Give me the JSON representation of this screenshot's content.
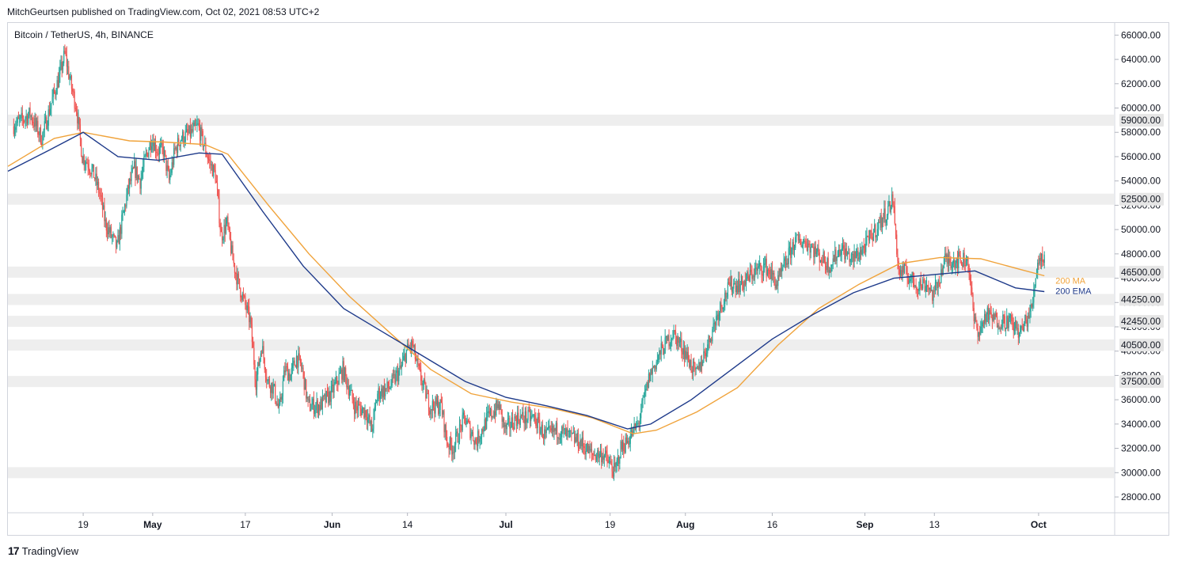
{
  "header": {
    "published": "MitchGeurtsen published on TradingView.com, Oct 02, 2021 08:53 UTC+2"
  },
  "footer": {
    "brand": "TradingView"
  },
  "colors": {
    "up": "#26a69a",
    "down": "#ef5350",
    "ma": "#f0a33b",
    "ema": "#1e3a8a",
    "zone": "#eeeeee",
    "grid": "#f0f3fa"
  },
  "chart_data": {
    "type": "candlestick",
    "title": "Bitcoin / TetherUS, 4h, BINANCE",
    "ylim": [
      26700,
      67000
    ],
    "y_ticks": [
      28000,
      30000,
      32000,
      34000,
      36000,
      38000,
      40000,
      42000,
      44000,
      46000,
      48000,
      50000,
      52000,
      54000,
      56000,
      58000,
      60000,
      62000,
      64000,
      66000
    ],
    "y_tick_labels": [
      "28000.00",
      "30000.00",
      "32000.00",
      "34000.00",
      "36000.00",
      "38000.00",
      "40000.00",
      "42000.00",
      "44000.00",
      "46000.00",
      "48000.00",
      "50000.00",
      "52000.00",
      "54000.00",
      "56000.00",
      "58000.00",
      "60000.00",
      "62000.00",
      "64000.00",
      "66000.00"
    ],
    "x_ticks": [
      {
        "label": "19",
        "date": "2021-04-19",
        "bold": false
      },
      {
        "label": "May",
        "date": "2021-05-01",
        "bold": true
      },
      {
        "label": "17",
        "date": "2021-05-17",
        "bold": false
      },
      {
        "label": "Jun",
        "date": "2021-06-01",
        "bold": true
      },
      {
        "label": "14",
        "date": "2021-06-14",
        "bold": false
      },
      {
        "label": "Jul",
        "date": "2021-07-01",
        "bold": true
      },
      {
        "label": "19",
        "date": "2021-07-19",
        "bold": false
      },
      {
        "label": "Aug",
        "date": "2021-08-01",
        "bold": true
      },
      {
        "label": "16",
        "date": "2021-08-16",
        "bold": false
      },
      {
        "label": "Sep",
        "date": "2021-09-01",
        "bold": true
      },
      {
        "label": "13",
        "date": "2021-09-13",
        "bold": false
      },
      {
        "label": "Oct",
        "date": "2021-10-01",
        "bold": true
      }
    ],
    "xlim": [
      "2021-04-06",
      "2021-10-14"
    ],
    "support_zones": [
      {
        "level": 59000,
        "label": "59000.00"
      },
      {
        "level": 52500,
        "label": "52500.00"
      },
      {
        "level": 46500,
        "label": "46500.00"
      },
      {
        "level": 44250,
        "label": "44250.00"
      },
      {
        "level": 42450,
        "label": "42450.00"
      },
      {
        "level": 40500,
        "label": "40500.00"
      },
      {
        "level": 37500,
        "label": "37500.00"
      },
      {
        "level": 30000,
        "label": ""
      }
    ],
    "price_series": {
      "name": "BTCUSDT",
      "points": [
        [
          "2021-04-07",
          58500
        ],
        [
          "2021-04-10",
          59500
        ],
        [
          "2021-04-12",
          57500
        ],
        [
          "2021-04-14",
          61000
        ],
        [
          "2021-04-15",
          62500
        ],
        [
          "2021-04-16",
          64500
        ],
        [
          "2021-04-17",
          62000
        ],
        [
          "2021-04-18",
          60000
        ],
        [
          "2021-04-19",
          56000
        ],
        [
          "2021-04-20",
          55500
        ],
        [
          "2021-04-21",
          54500
        ],
        [
          "2021-04-22",
          53000
        ],
        [
          "2021-04-23",
          50500
        ],
        [
          "2021-04-24",
          49500
        ],
        [
          "2021-04-25",
          48500
        ],
        [
          "2021-04-26",
          51000
        ],
        [
          "2021-04-27",
          53500
        ],
        [
          "2021-04-28",
          55000
        ],
        [
          "2021-04-29",
          54000
        ],
        [
          "2021-04-30",
          56000
        ],
        [
          "2021-05-01",
          57500
        ],
        [
          "2021-05-02",
          56500
        ],
        [
          "2021-05-03",
          56500
        ],
        [
          "2021-05-04",
          54000
        ],
        [
          "2021-05-05",
          56500
        ],
        [
          "2021-05-06",
          57500
        ],
        [
          "2021-05-08",
          58000
        ],
        [
          "2021-05-09",
          58500
        ],
        [
          "2021-05-10",
          57000
        ],
        [
          "2021-05-11",
          55500
        ],
        [
          "2021-05-12",
          54500
        ],
        [
          "2021-05-13",
          49500
        ],
        [
          "2021-05-14",
          50500
        ],
        [
          "2021-05-15",
          47500
        ],
        [
          "2021-05-16",
          45500
        ],
        [
          "2021-05-17",
          44000
        ],
        [
          "2021-05-18",
          42500
        ],
        [
          "2021-05-19",
          37500
        ],
        [
          "2021-05-20",
          40500
        ],
        [
          "2021-05-21",
          37500
        ],
        [
          "2021-05-22",
          37000
        ],
        [
          "2021-05-23",
          35000
        ],
        [
          "2021-05-24",
          38500
        ],
        [
          "2021-05-25",
          38000
        ],
        [
          "2021-05-26",
          39500
        ],
        [
          "2021-05-27",
          38500
        ],
        [
          "2021-05-28",
          35500
        ],
        [
          "2021-05-30",
          35500
        ],
        [
          "2021-06-01",
          36500
        ],
        [
          "2021-06-03",
          38500
        ],
        [
          "2021-06-05",
          35500
        ],
        [
          "2021-06-07",
          35000
        ],
        [
          "2021-06-08",
          33500
        ],
        [
          "2021-06-09",
          36500
        ],
        [
          "2021-06-11",
          37000
        ],
        [
          "2021-06-13",
          38500
        ],
        [
          "2021-06-14",
          40000
        ],
        [
          "2021-06-15",
          40500
        ],
        [
          "2021-06-16",
          38500
        ],
        [
          "2021-06-18",
          35500
        ],
        [
          "2021-06-20",
          35500
        ],
        [
          "2021-06-21",
          32500
        ],
        [
          "2021-06-22",
          32000
        ],
        [
          "2021-06-24",
          34500
        ],
        [
          "2021-06-26",
          32500
        ],
        [
          "2021-06-28",
          34500
        ],
        [
          "2021-06-30",
          35500
        ],
        [
          "2021-07-01",
          33500
        ],
        [
          "2021-07-03",
          34500
        ],
        [
          "2021-07-06",
          34500
        ],
        [
          "2021-07-08",
          33000
        ],
        [
          "2021-07-10",
          33500
        ],
        [
          "2021-07-12",
          33000
        ],
        [
          "2021-07-14",
          32500
        ],
        [
          "2021-07-16",
          31500
        ],
        [
          "2021-07-18",
          31500
        ],
        [
          "2021-07-20",
          30000
        ],
        [
          "2021-07-21",
          32000
        ],
        [
          "2021-07-22",
          32500
        ],
        [
          "2021-07-24",
          34000
        ],
        [
          "2021-07-26",
          38000
        ],
        [
          "2021-07-28",
          40000
        ],
        [
          "2021-07-30",
          41500
        ],
        [
          "2021-08-01",
          40000
        ],
        [
          "2021-08-03",
          38000
        ],
        [
          "2021-08-05",
          40500
        ],
        [
          "2021-08-07",
          43500
        ],
        [
          "2021-08-09",
          45500
        ],
        [
          "2021-08-11",
          45500
        ],
        [
          "2021-08-13",
          46500
        ],
        [
          "2021-08-15",
          47000
        ],
        [
          "2021-08-17",
          45500
        ],
        [
          "2021-08-20",
          49000
        ],
        [
          "2021-08-22",
          49000
        ],
        [
          "2021-08-24",
          48000
        ],
        [
          "2021-08-26",
          47000
        ],
        [
          "2021-08-28",
          48500
        ],
        [
          "2021-08-30",
          47500
        ],
        [
          "2021-09-01",
          48500
        ],
        [
          "2021-09-03",
          50000
        ],
        [
          "2021-09-05",
          51500
        ],
        [
          "2021-09-06",
          52500
        ],
        [
          "2021-09-07",
          46500
        ],
        [
          "2021-09-08",
          46500
        ],
        [
          "2021-09-10",
          45500
        ],
        [
          "2021-09-12",
          45500
        ],
        [
          "2021-09-13",
          44500
        ],
        [
          "2021-09-15",
          47500
        ],
        [
          "2021-09-17",
          47500
        ],
        [
          "2021-09-19",
          47500
        ],
        [
          "2021-09-20",
          42500
        ],
        [
          "2021-09-21",
          41500
        ],
        [
          "2021-09-22",
          43000
        ],
        [
          "2021-09-24",
          42500
        ],
        [
          "2021-09-26",
          42500
        ],
        [
          "2021-09-28",
          41500
        ],
        [
          "2021-09-30",
          43500
        ],
        [
          "2021-10-01",
          47500
        ],
        [
          "2021-10-02",
          47800
        ]
      ]
    },
    "series": [
      {
        "name": "200 MA",
        "points": [
          [
            "2021-04-06",
            55200
          ],
          [
            "2021-04-14",
            57500
          ],
          [
            "2021-04-19",
            58000
          ],
          [
            "2021-04-27",
            57300
          ],
          [
            "2021-05-03",
            57200
          ],
          [
            "2021-05-10",
            57000
          ],
          [
            "2021-05-14",
            56200
          ],
          [
            "2021-05-21",
            52000
          ],
          [
            "2021-05-28",
            48000
          ],
          [
            "2021-06-04",
            44500
          ],
          [
            "2021-06-11",
            41500
          ],
          [
            "2021-06-18",
            38500
          ],
          [
            "2021-06-25",
            36500
          ],
          [
            "2021-07-02",
            35800
          ],
          [
            "2021-07-09",
            35300
          ],
          [
            "2021-07-16",
            34500
          ],
          [
            "2021-07-23",
            33200
          ],
          [
            "2021-07-27",
            33500
          ],
          [
            "2021-08-03",
            35000
          ],
          [
            "2021-08-10",
            37000
          ],
          [
            "2021-08-17",
            40500
          ],
          [
            "2021-08-24",
            43500
          ],
          [
            "2021-08-31",
            45500
          ],
          [
            "2021-09-07",
            47200
          ],
          [
            "2021-09-14",
            47700
          ],
          [
            "2021-09-21",
            47600
          ],
          [
            "2021-09-28",
            46700
          ],
          [
            "2021-10-02",
            46200
          ]
        ]
      },
      {
        "name": "200 EMA",
        "points": [
          [
            "2021-04-06",
            54800
          ],
          [
            "2021-04-13",
            56500
          ],
          [
            "2021-04-19",
            58000
          ],
          [
            "2021-04-25",
            56000
          ],
          [
            "2021-05-02",
            55700
          ],
          [
            "2021-05-09",
            56300
          ],
          [
            "2021-05-13",
            56200
          ],
          [
            "2021-05-20",
            51500
          ],
          [
            "2021-05-27",
            47000
          ],
          [
            "2021-06-03",
            43500
          ],
          [
            "2021-06-10",
            41500
          ],
          [
            "2021-06-17",
            39500
          ],
          [
            "2021-06-24",
            37500
          ],
          [
            "2021-07-01",
            36200
          ],
          [
            "2021-07-08",
            35500
          ],
          [
            "2021-07-15",
            34700
          ],
          [
            "2021-07-22",
            33600
          ],
          [
            "2021-07-26",
            34000
          ],
          [
            "2021-08-02",
            36000
          ],
          [
            "2021-08-09",
            38500
          ],
          [
            "2021-08-16",
            41000
          ],
          [
            "2021-08-23",
            43000
          ],
          [
            "2021-08-30",
            44800
          ],
          [
            "2021-09-06",
            46000
          ],
          [
            "2021-09-13",
            46300
          ],
          [
            "2021-09-20",
            46600
          ],
          [
            "2021-09-27",
            45200
          ],
          [
            "2021-10-02",
            44900
          ]
        ]
      }
    ]
  }
}
